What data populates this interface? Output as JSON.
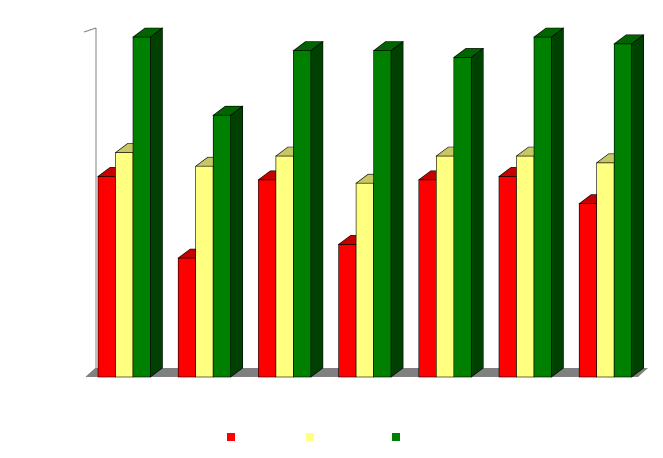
{
  "chart_data": {
    "type": "bar",
    "style": "3d-clustered-column",
    "categories": [
      "",
      "",
      "",
      "",
      "",
      "",
      ""
    ],
    "series": [
      {
        "color": "#ff0000",
        "values": [
          59,
          35,
          58,
          39,
          58,
          59,
          51
        ]
      },
      {
        "color": "#ffff80",
        "values": [
          66,
          62,
          65,
          57,
          65,
          65,
          63
        ]
      },
      {
        "color": "#008000",
        "values": [
          100,
          77,
          96,
          96,
          94,
          100,
          98
        ]
      }
    ],
    "ylim": [
      0,
      100
    ],
    "grid": false,
    "legend": "bottom",
    "colors": {
      "wall": "#ffffff",
      "floor": "#808080",
      "axis": "#808080"
    }
  }
}
